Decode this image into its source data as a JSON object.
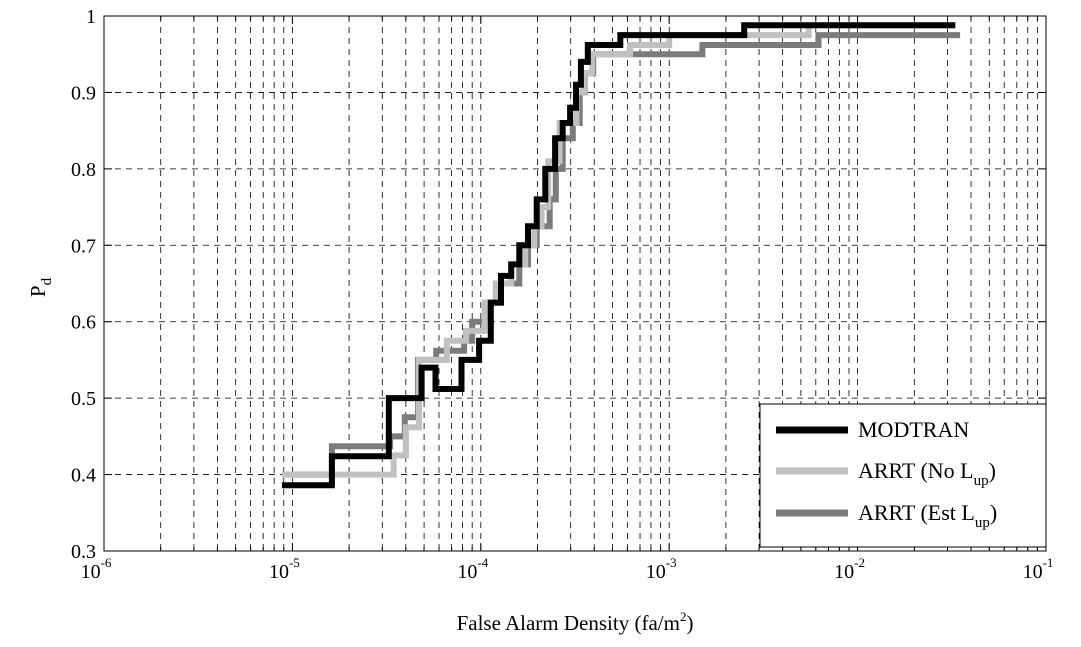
{
  "chart_data": {
    "type": "line",
    "step": true,
    "xscale": "log",
    "xlim": [
      1e-06,
      0.1
    ],
    "ylim": [
      0.3,
      1.0
    ],
    "xticks": [
      {
        "value": 1e-06,
        "base": "10",
        "exp": "-6"
      },
      {
        "value": 1e-05,
        "base": "10",
        "exp": "-5"
      },
      {
        "value": 0.0001,
        "base": "10",
        "exp": "-4"
      },
      {
        "value": 0.001,
        "base": "10",
        "exp": "-3"
      },
      {
        "value": 0.01,
        "base": "10",
        "exp": "-2"
      },
      {
        "value": 0.1,
        "base": "10",
        "exp": "-1"
      }
    ],
    "yticks": [
      "0.3",
      "0.4",
      "0.5",
      "0.6",
      "0.7",
      "0.8",
      "0.9",
      "1"
    ],
    "grid": true,
    "xlabel": {
      "main": "False Alarm Density (fa/m",
      "sup": "2",
      "tail": ")"
    },
    "ylabel": {
      "main": "P",
      "sub": "d"
    },
    "legend_position": "bottom-right",
    "series": [
      {
        "name": "MODTRAN",
        "label_main": "MODTRAN",
        "label_sub": "",
        "label_tail": "",
        "color": "#000000",
        "points": [
          [
            8.8e-06,
            0.386
          ],
          [
            1.62e-05,
            0.386
          ],
          [
            1.62e-05,
            0.424
          ],
          [
            3.25e-05,
            0.424
          ],
          [
            3.25e-05,
            0.5
          ],
          [
            4.85e-05,
            0.5
          ],
          [
            4.85e-05,
            0.54
          ],
          [
            5.75e-05,
            0.54
          ],
          [
            5.75e-05,
            0.512
          ],
          [
            7.9e-05,
            0.512
          ],
          [
            7.9e-05,
            0.55
          ],
          [
            9.8e-05,
            0.55
          ],
          [
            9.8e-05,
            0.575
          ],
          [
            0.000113,
            0.575
          ],
          [
            0.000113,
            0.625
          ],
          [
            0.000128,
            0.625
          ],
          [
            0.000128,
            0.66
          ],
          [
            0.000145,
            0.66
          ],
          [
            0.000145,
            0.675
          ],
          [
            0.00016,
            0.675
          ],
          [
            0.00016,
            0.7
          ],
          [
            0.000178,
            0.7
          ],
          [
            0.000178,
            0.725
          ],
          [
            0.000198,
            0.725
          ],
          [
            0.000198,
            0.76
          ],
          [
            0.00022,
            0.76
          ],
          [
            0.00022,
            0.8
          ],
          [
            0.000248,
            0.8
          ],
          [
            0.000248,
            0.84
          ],
          [
            0.000272,
            0.84
          ],
          [
            0.000272,
            0.86
          ],
          [
            0.000298,
            0.86
          ],
          [
            0.000298,
            0.88
          ],
          [
            0.00032,
            0.88
          ],
          [
            0.00032,
            0.91
          ],
          [
            0.00034,
            0.91
          ],
          [
            0.00034,
            0.94
          ],
          [
            0.00037,
            0.94
          ],
          [
            0.00037,
            0.962
          ],
          [
            0.00055,
            0.962
          ],
          [
            0.00055,
            0.975
          ],
          [
            0.0025,
            0.975
          ],
          [
            0.0025,
            0.988
          ],
          [
            0.033,
            0.988
          ]
        ]
      },
      {
        "name": "ARRT (No L_up)",
        "label_main": "ARRT (No L",
        "label_sub": "up",
        "label_tail": ")",
        "color": "#c0c0c0",
        "points": [
          [
            8.8e-06,
            0.4
          ],
          [
            3.45e-05,
            0.4
          ],
          [
            3.45e-05,
            0.425
          ],
          [
            4e-05,
            0.425
          ],
          [
            4e-05,
            0.462
          ],
          [
            4.7e-05,
            0.462
          ],
          [
            4.7e-05,
            0.55
          ],
          [
            6.6e-05,
            0.55
          ],
          [
            6.6e-05,
            0.575
          ],
          [
            8.35e-05,
            0.575
          ],
          [
            8.35e-05,
            0.588
          ],
          [
            0.000105,
            0.588
          ],
          [
            0.000105,
            0.625
          ],
          [
            0.00012,
            0.625
          ],
          [
            0.00012,
            0.65
          ],
          [
            0.000145,
            0.65
          ],
          [
            0.000145,
            0.675
          ],
          [
            0.000172,
            0.675
          ],
          [
            0.000172,
            0.7
          ],
          [
            0.000192,
            0.7
          ],
          [
            0.000192,
            0.725
          ],
          [
            0.00021,
            0.725
          ],
          [
            0.00021,
            0.75
          ],
          [
            0.000228,
            0.75
          ],
          [
            0.000228,
            0.81
          ],
          [
            0.000262,
            0.81
          ],
          [
            0.000262,
            0.86
          ],
          [
            0.000322,
            0.86
          ],
          [
            0.000322,
            0.9
          ],
          [
            0.000352,
            0.9
          ],
          [
            0.000352,
            0.925
          ],
          [
            0.00039,
            0.925
          ],
          [
            0.00039,
            0.95
          ],
          [
            0.00062,
            0.95
          ],
          [
            0.00062,
            0.962
          ],
          [
            0.001,
            0.962
          ],
          [
            0.001,
            0.975
          ],
          [
            0.0055,
            0.975
          ],
          [
            0.0055,
            0.988
          ],
          [
            0.033,
            0.988
          ]
        ]
      },
      {
        "name": "ARRT (Est L_up)",
        "label_main": "ARRT (Est L",
        "label_sub": "up",
        "label_tail": ")",
        "color": "#7b7b7b",
        "points": [
          [
            8.8e-06,
            0.4
          ],
          [
            1.62e-05,
            0.4
          ],
          [
            1.62e-05,
            0.437
          ],
          [
            3.3e-05,
            0.437
          ],
          [
            3.3e-05,
            0.45
          ],
          [
            3.95e-05,
            0.45
          ],
          [
            3.95e-05,
            0.475
          ],
          [
            4.65e-05,
            0.475
          ],
          [
            4.65e-05,
            0.55
          ],
          [
            5.8e-05,
            0.55
          ],
          [
            5.8e-05,
            0.562
          ],
          [
            8.15e-05,
            0.562
          ],
          [
            8.15e-05,
            0.575
          ],
          [
            9e-05,
            0.575
          ],
          [
            9e-05,
            0.6
          ],
          [
            0.00011,
            0.6
          ],
          [
            0.00011,
            0.625
          ],
          [
            0.000125,
            0.625
          ],
          [
            0.000125,
            0.65
          ],
          [
            0.00016,
            0.65
          ],
          [
            0.00016,
            0.675
          ],
          [
            0.000178,
            0.675
          ],
          [
            0.000178,
            0.7
          ],
          [
            0.000198,
            0.7
          ],
          [
            0.000198,
            0.725
          ],
          [
            0.000232,
            0.725
          ],
          [
            0.000232,
            0.76
          ],
          [
            0.00025,
            0.76
          ],
          [
            0.00025,
            0.8
          ],
          [
            0.000272,
            0.8
          ],
          [
            0.000272,
            0.84
          ],
          [
            0.000308,
            0.84
          ],
          [
            0.000308,
            0.86
          ],
          [
            0.000335,
            0.86
          ],
          [
            0.000335,
            0.9
          ],
          [
            0.000355,
            0.9
          ],
          [
            0.000355,
            0.925
          ],
          [
            0.000395,
            0.925
          ],
          [
            0.000395,
            0.95
          ],
          [
            0.0015,
            0.95
          ],
          [
            0.0015,
            0.962
          ],
          [
            0.0062,
            0.962
          ],
          [
            0.0062,
            0.975
          ],
          [
            0.035,
            0.975
          ]
        ]
      }
    ]
  }
}
